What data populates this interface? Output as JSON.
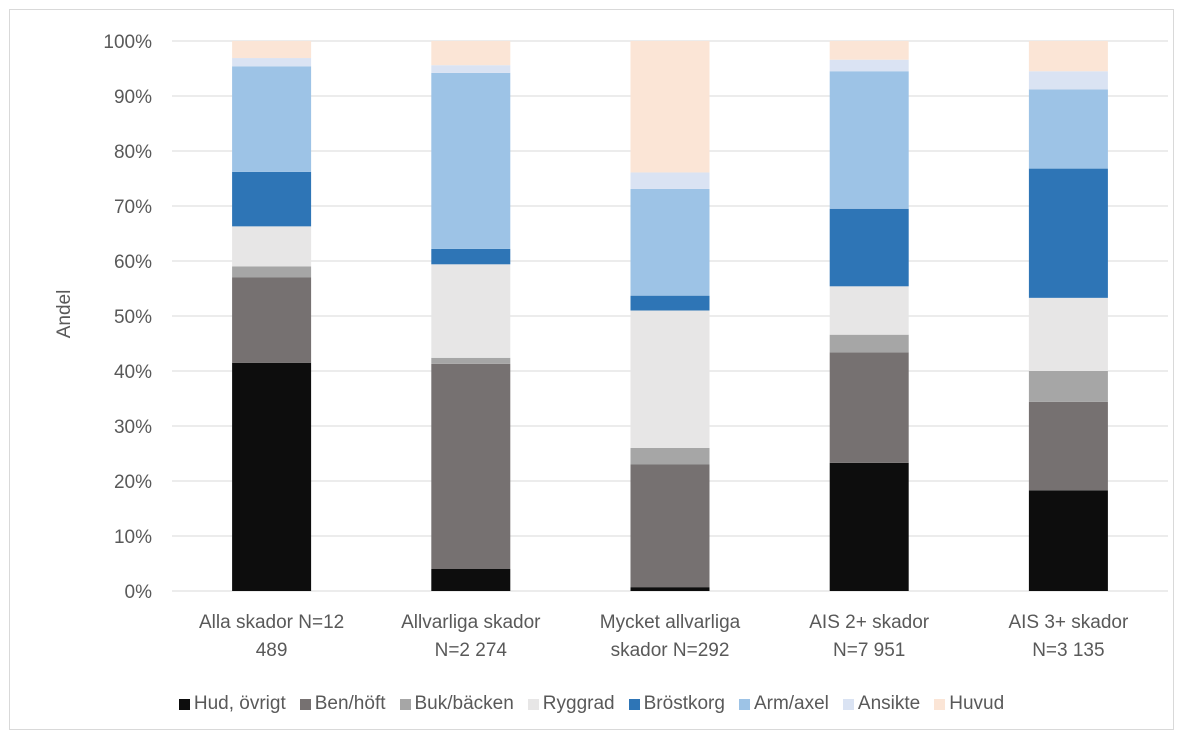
{
  "chart_data": {
    "type": "bar",
    "stacked": true,
    "title": "",
    "xlabel": "",
    "ylabel": "Andel",
    "ylim": [
      0,
      100
    ],
    "yticks": [
      "0%",
      "10%",
      "20%",
      "30%",
      "40%",
      "50%",
      "60%",
      "70%",
      "80%",
      "90%",
      "100%"
    ],
    "grid": true,
    "legend_position": "bottom",
    "categories": [
      [
        "Alla skador N=12",
        "489"
      ],
      [
        "Allvarliga skador",
        "N=2 274"
      ],
      [
        "Mycket allvarliga",
        "skador N=292"
      ],
      [
        "AIS 2+ skador",
        "N=7 951"
      ],
      [
        "AIS 3+ skador",
        "N=3 135"
      ]
    ],
    "series": [
      {
        "name": "Hud, övrigt",
        "color": "#0d0d0d",
        "values": [
          41.5,
          4.0,
          0.7,
          23.3,
          18.3
        ]
      },
      {
        "name": "Ben/höft",
        "color": "#767171",
        "values": [
          15.5,
          37.3,
          22.3,
          20.1,
          16.1
        ]
      },
      {
        "name": "Buk/bäcken",
        "color": "#a6a6a6",
        "values": [
          2.0,
          1.1,
          3.0,
          3.2,
          5.6
        ]
      },
      {
        "name": "Ryggrad",
        "color": "#e7e6e6",
        "values": [
          7.3,
          17.0,
          25.0,
          8.8,
          13.3
        ]
      },
      {
        "name": "Bröstkorg",
        "color": "#2e75b6",
        "values": [
          9.9,
          2.8,
          2.7,
          14.1,
          23.5
        ]
      },
      {
        "name": "Arm/axel",
        "color": "#9dc3e6",
        "values": [
          19.2,
          32.0,
          19.4,
          25.0,
          14.4
        ]
      },
      {
        "name": "Ansikte",
        "color": "#dae3f3",
        "values": [
          1.5,
          1.4,
          3.0,
          2.1,
          3.3
        ]
      },
      {
        "name": "Huvud",
        "color": "#fbe5d6",
        "values": [
          3.1,
          4.4,
          23.9,
          3.4,
          5.5
        ]
      }
    ]
  }
}
